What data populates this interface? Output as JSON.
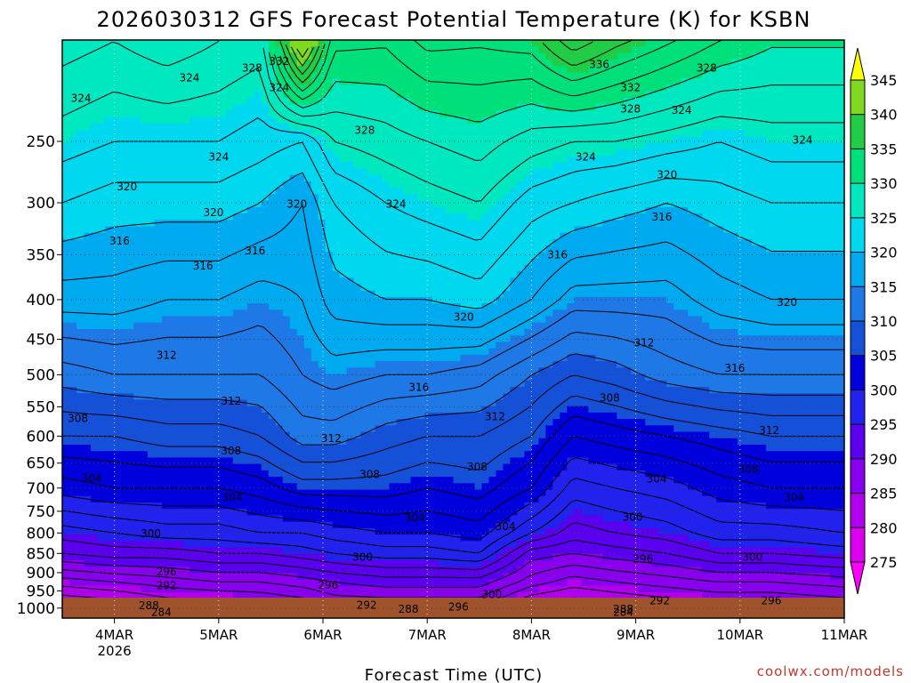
{
  "chart_data": {
    "type": "heatmap",
    "title": "2026030312 GFS Forecast Potential Temperature (K) for KSBN",
    "xlabel": "Forecast Time (UTC)",
    "ylabel": "",
    "x_ticks": [
      {
        "x": 0,
        "label": "4MAR",
        "sublabel": "2026"
      },
      {
        "x": 1,
        "label": "5MAR",
        "sublabel": ""
      },
      {
        "x": 2,
        "label": "6MAR",
        "sublabel": ""
      },
      {
        "x": 3,
        "label": "7MAR",
        "sublabel": ""
      },
      {
        "x": 4,
        "label": "8MAR",
        "sublabel": ""
      },
      {
        "x": 5,
        "label": "9MAR",
        "sublabel": ""
      },
      {
        "x": 6,
        "label": "10MAR",
        "sublabel": ""
      },
      {
        "x": 7,
        "label": "11MAR",
        "sublabel": ""
      }
    ],
    "xlim": [
      -0.5,
      7
    ],
    "y_ticks": [
      250,
      300,
      350,
      400,
      450,
      500,
      550,
      600,
      650,
      700,
      750,
      800,
      850,
      900,
      950,
      1000
    ],
    "ylim": [
      1030,
      185
    ],
    "y_scale": "log",
    "y_inverted": true,
    "colorbar": {
      "levels": [
        275,
        280,
        285,
        290,
        295,
        300,
        305,
        310,
        315,
        320,
        325,
        330,
        335,
        340,
        345
      ],
      "colors": [
        "#ff00ff",
        "#dd00ee",
        "#b000ee",
        "#8800ee",
        "#5a00ee",
        "#2222ee",
        "#0000dd",
        "#1450d8",
        "#1e78e6",
        "#00aaf0",
        "#00d8f0",
        "#00e8c0",
        "#00e07a",
        "#22cc44",
        "#80d820",
        "#d8e820",
        "#ffff00"
      ],
      "extend": "both"
    },
    "profiles": [
      {
        "x": -0.5,
        "p": [
          1000,
          925,
          850,
          800,
          700,
          600,
          500,
          400,
          300,
          250,
          200
        ],
        "theta": [
          279,
          285,
          292,
          295,
          301,
          306,
          311,
          317,
          322,
          325,
          328
        ]
      },
      {
        "x": 0.0,
        "p": [
          1000,
          925,
          850,
          800,
          700,
          600,
          500,
          400,
          300,
          250,
          200
        ],
        "theta": [
          280,
          286,
          293,
          296,
          302,
          306,
          312,
          317,
          321,
          324,
          327
        ]
      },
      {
        "x": 0.5,
        "p": [
          1000,
          925,
          850,
          800,
          700,
          600,
          500,
          400,
          300,
          250,
          200
        ],
        "theta": [
          282,
          287,
          293,
          297,
          302,
          307,
          312,
          316,
          321,
          324,
          328
        ]
      },
      {
        "x": 1.0,
        "p": [
          1000,
          925,
          850,
          800,
          700,
          600,
          500,
          400,
          300,
          250,
          200
        ],
        "theta": [
          282,
          288,
          294,
          297,
          302,
          307,
          312,
          316,
          321,
          324,
          327
        ]
      },
      {
        "x": 1.4,
        "p": [
          1000,
          925,
          850,
          800,
          700,
          600,
          500,
          400,
          300,
          250,
          200
        ],
        "theta": [
          283,
          288,
          294,
          298,
          303,
          308,
          312,
          315,
          320,
          323,
          326
        ]
      },
      {
        "x": 1.8,
        "p": [
          1000,
          925,
          850,
          800,
          700,
          600,
          500,
          400,
          300,
          250,
          200
        ],
        "theta": [
          284,
          289,
          295,
          298,
          305,
          311,
          314,
          316,
          318,
          322,
          340
        ]
      },
      {
        "x": 2.1,
        "p": [
          1000,
          925,
          850,
          800,
          700,
          600,
          500,
          400,
          300,
          250,
          200
        ],
        "theta": [
          286,
          290,
          296,
          299,
          305,
          311,
          315,
          319,
          322,
          326,
          331
        ]
      },
      {
        "x": 2.6,
        "p": [
          1000,
          925,
          850,
          800,
          700,
          600,
          500,
          400,
          300,
          250,
          200
        ],
        "theta": [
          286,
          291,
          297,
          300,
          305,
          309,
          314,
          320,
          324,
          327,
          331
        ]
      },
      {
        "x": 3.0,
        "p": [
          1000,
          925,
          850,
          800,
          700,
          600,
          500,
          400,
          300,
          250,
          200
        ],
        "theta": [
          286,
          291,
          297,
          300,
          304,
          308,
          314,
          320,
          325,
          328,
          333
        ]
      },
      {
        "x": 3.5,
        "p": [
          1000,
          925,
          850,
          800,
          700,
          600,
          500,
          400,
          300,
          250,
          200
        ],
        "theta": [
          286,
          291,
          298,
          301,
          305,
          308,
          313,
          321,
          326,
          329,
          333
        ]
      },
      {
        "x": 4.0,
        "p": [
          1000,
          925,
          850,
          800,
          700,
          600,
          500,
          400,
          300,
          250,
          200
        ],
        "theta": [
          281,
          287,
          291,
          296,
          302,
          306,
          310,
          318,
          323,
          327,
          333
        ]
      },
      {
        "x": 4.4,
        "p": [
          1000,
          925,
          850,
          800,
          700,
          600,
          500,
          400,
          300,
          250,
          200
        ],
        "theta": [
          280,
          285,
          290,
          293,
          297,
          302,
          308,
          315,
          322,
          326,
          336
        ]
      },
      {
        "x": 4.8,
        "p": [
          1000,
          925,
          850,
          800,
          700,
          600,
          500,
          400,
          300,
          250,
          200
        ],
        "theta": [
          281,
          286,
          291,
          294,
          298,
          303,
          309,
          315,
          321,
          326,
          334
        ]
      },
      {
        "x": 5.3,
        "p": [
          1000,
          925,
          850,
          800,
          700,
          600,
          500,
          400,
          300,
          250,
          200
        ],
        "theta": [
          282,
          287,
          292,
          295,
          299,
          304,
          311,
          315,
          320,
          325,
          332
        ]
      },
      {
        "x": 5.8,
        "p": [
          1000,
          925,
          850,
          800,
          700,
          600,
          500,
          400,
          300,
          250,
          200
        ],
        "theta": [
          283,
          288,
          294,
          297,
          301,
          305,
          312,
          317,
          321,
          324,
          330
        ]
      },
      {
        "x": 6.3,
        "p": [
          1000,
          925,
          850,
          800,
          700,
          600,
          500,
          400,
          300,
          250,
          200
        ],
        "theta": [
          283,
          288,
          294,
          297,
          302,
          306,
          312,
          318,
          322,
          325,
          329
        ]
      },
      {
        "x": 7.0,
        "p": [
          1000,
          925,
          850,
          800,
          700,
          600,
          500,
          400,
          300,
          250,
          200
        ],
        "theta": [
          284,
          289,
          295,
          298,
          302,
          306,
          312,
          318,
          322,
          325,
          329
        ]
      }
    ],
    "contour_labels": [
      {
        "x": -0.32,
        "p": 220,
        "text": "324"
      },
      {
        "x": 0.72,
        "p": 207,
        "text": "324"
      },
      {
        "x": 1.32,
        "p": 201,
        "text": "328"
      },
      {
        "x": 1.58,
        "p": 197,
        "text": "332"
      },
      {
        "x": 1.58,
        "p": 213,
        "text": "324"
      },
      {
        "x": 2.4,
        "p": 242,
        "text": "328"
      },
      {
        "x": 4.65,
        "p": 199,
        "text": "336"
      },
      {
        "x": 4.95,
        "p": 213,
        "text": "332"
      },
      {
        "x": 4.95,
        "p": 227,
        "text": "328"
      },
      {
        "x": 4.52,
        "p": 262,
        "text": "324"
      },
      {
        "x": 5.68,
        "p": 201,
        "text": "328"
      },
      {
        "x": 5.44,
        "p": 228,
        "text": "324"
      },
      {
        "x": 6.6,
        "p": 249,
        "text": "324"
      },
      {
        "x": 1.0,
        "p": 262,
        "text": "324"
      },
      {
        "x": 0.12,
        "p": 286,
        "text": "320"
      },
      {
        "x": 0.95,
        "p": 309,
        "text": "320"
      },
      {
        "x": 1.75,
        "p": 301,
        "text": "320"
      },
      {
        "x": 2.7,
        "p": 301,
        "text": "324"
      },
      {
        "x": 5.3,
        "p": 276,
        "text": "320"
      },
      {
        "x": 0.05,
        "p": 336,
        "text": "316"
      },
      {
        "x": 0.85,
        "p": 362,
        "text": "316"
      },
      {
        "x": 1.35,
        "p": 346,
        "text": "316"
      },
      {
        "x": 4.25,
        "p": 350,
        "text": "316"
      },
      {
        "x": 5.25,
        "p": 313,
        "text": "316"
      },
      {
        "x": 3.35,
        "p": 421,
        "text": "320"
      },
      {
        "x": 6.45,
        "p": 403,
        "text": "320"
      },
      {
        "x": 0.5,
        "p": 472,
        "text": "312"
      },
      {
        "x": 5.08,
        "p": 455,
        "text": "312"
      },
      {
        "x": 2.92,
        "p": 519,
        "text": "316"
      },
      {
        "x": 5.95,
        "p": 490,
        "text": "316"
      },
      {
        "x": 1.12,
        "p": 541,
        "text": "312"
      },
      {
        "x": 3.65,
        "p": 566,
        "text": "312"
      },
      {
        "x": 2.08,
        "p": 604,
        "text": "312"
      },
      {
        "x": 6.28,
        "p": 590,
        "text": "312"
      },
      {
        "x": -0.35,
        "p": 569,
        "text": "308"
      },
      {
        "x": 4.75,
        "p": 536,
        "text": "308"
      },
      {
        "x": 1.12,
        "p": 627,
        "text": "308"
      },
      {
        "x": 2.45,
        "p": 672,
        "text": "308"
      },
      {
        "x": 3.48,
        "p": 657,
        "text": "308"
      },
      {
        "x": 6.08,
        "p": 662,
        "text": "308"
      },
      {
        "x": -0.22,
        "p": 680,
        "text": "304"
      },
      {
        "x": 1.13,
        "p": 720,
        "text": "304"
      },
      {
        "x": 2.88,
        "p": 765,
        "text": "304"
      },
      {
        "x": 3.75,
        "p": 785,
        "text": "304"
      },
      {
        "x": 5.2,
        "p": 681,
        "text": "304"
      },
      {
        "x": 6.52,
        "p": 720,
        "text": "304"
      },
      {
        "x": 0.35,
        "p": 801,
        "text": "300"
      },
      {
        "x": 2.38,
        "p": 860,
        "text": "300"
      },
      {
        "x": 4.97,
        "p": 763,
        "text": "300"
      },
      {
        "x": 6.12,
        "p": 859,
        "text": "300"
      },
      {
        "x": 0.5,
        "p": 898,
        "text": "296"
      },
      {
        "x": 2.05,
        "p": 934,
        "text": "296"
      },
      {
        "x": 3.3,
        "p": 996,
        "text": "296"
      },
      {
        "x": 3.62,
        "p": 960,
        "text": "300"
      },
      {
        "x": 5.07,
        "p": 864,
        "text": "296"
      },
      {
        "x": 6.3,
        "p": 978,
        "text": "296"
      },
      {
        "x": 0.5,
        "p": 935,
        "text": "292"
      },
      {
        "x": 2.42,
        "p": 991,
        "text": "292"
      },
      {
        "x": 5.23,
        "p": 978,
        "text": "292"
      },
      {
        "x": 0.33,
        "p": 992,
        "text": "288"
      },
      {
        "x": 2.82,
        "p": 1003,
        "text": "288"
      },
      {
        "x": 4.88,
        "p": 1003,
        "text": "288"
      },
      {
        "x": 0.45,
        "p": 1012,
        "text": "284"
      },
      {
        "x": 4.88,
        "p": 1013,
        "text": "284"
      }
    ],
    "credit": "coolwx.com/models"
  }
}
